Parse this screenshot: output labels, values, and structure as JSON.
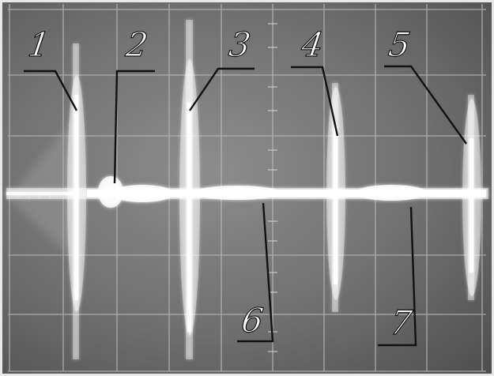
{
  "callouts": [
    {
      "label": "1"
    },
    {
      "label": "2"
    },
    {
      "label": "3"
    },
    {
      "label": "4"
    },
    {
      "label": "5"
    },
    {
      "label": "6"
    },
    {
      "label": "7"
    }
  ],
  "colors": {
    "screen": "#6f6f6f",
    "grid": "#b8b8b8",
    "trace": "#ffffff",
    "leader": "#111111"
  }
}
